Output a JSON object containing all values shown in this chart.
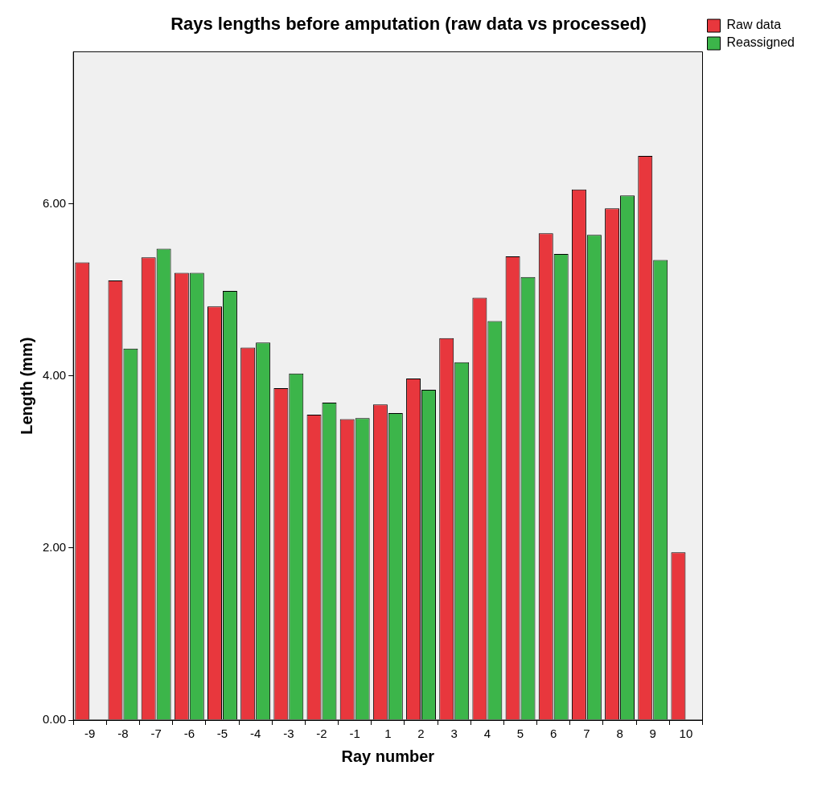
{
  "chart_data": {
    "type": "bar",
    "title": "Rays lengths before amputation (raw data vs processed)",
    "xlabel": "Ray number",
    "ylabel": "Length (mm)",
    "categories": [
      "-9",
      "-8",
      "-7",
      "-6",
      "-5",
      "-4",
      "-3",
      "-2",
      "-1",
      "1",
      "2",
      "3",
      "4",
      "5",
      "6",
      "7",
      "8",
      "9",
      "10"
    ],
    "series": [
      {
        "name": "Raw data",
        "color": "#e8373d",
        "values": [
          5.32,
          5.11,
          5.38,
          5.2,
          4.81,
          4.33,
          3.86,
          3.55,
          3.5,
          3.67,
          3.97,
          4.44,
          4.91,
          5.39,
          5.66,
          6.17,
          5.95,
          6.56,
          1.95
        ]
      },
      {
        "name": "Reassigned",
        "color": "#3cb54a",
        "values": [
          null,
          4.32,
          5.48,
          5.2,
          4.99,
          4.39,
          4.03,
          3.69,
          3.51,
          3.57,
          3.84,
          4.16,
          4.64,
          5.15,
          5.42,
          5.64,
          6.1,
          5.35,
          null
        ]
      }
    ],
    "ylim": [
      0,
      7.77
    ],
    "yticks": [
      {
        "value": 0,
        "label": "0.00"
      },
      {
        "value": 2,
        "label": "2.00"
      },
      {
        "value": 4,
        "label": "4.00"
      },
      {
        "value": 6,
        "label": "6.00"
      }
    ],
    "grid": false,
    "legend": "top right"
  }
}
